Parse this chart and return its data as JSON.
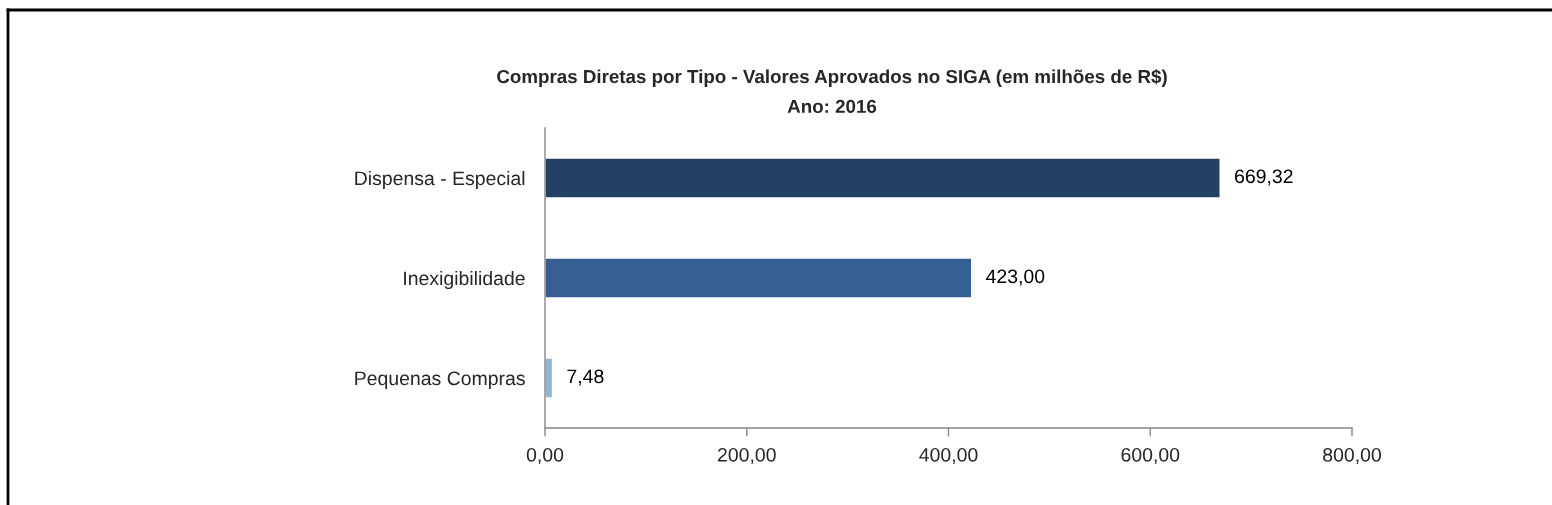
{
  "chart_data": {
    "type": "bar",
    "orientation": "horizontal",
    "title": "Compras Diretas por Tipo - Valores Aprovados no SIGA (em milhões de R$)",
    "subtitle": "Ano: 2016",
    "categories": [
      "Dispensa - Especial",
      "Inexigibilidade",
      "Pequenas Compras"
    ],
    "values": [
      669.32,
      423.0,
      7.48
    ],
    "colors": [
      "#244062",
      "#366092",
      "#95b3d7"
    ],
    "value_labels": [
      "669,32",
      "423,00",
      "7,48"
    ],
    "xlim": [
      0,
      800
    ],
    "xticks": [
      {
        "value": 0,
        "label": "0,00"
      },
      {
        "value": 200,
        "label": "200,00"
      },
      {
        "value": 400,
        "label": "400,00"
      },
      {
        "value": 600,
        "label": "600,00"
      },
      {
        "value": 800,
        "label": "800,00"
      }
    ]
  }
}
